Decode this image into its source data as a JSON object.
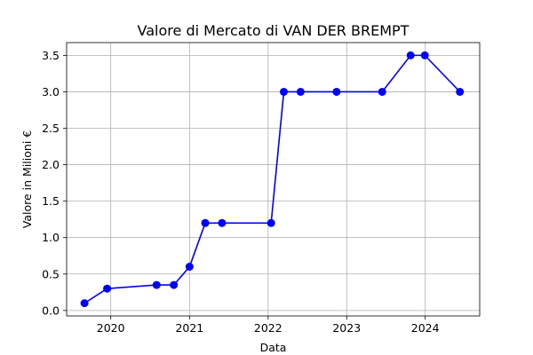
{
  "chart_data": {
    "type": "line",
    "title": "Valore di Mercato di VAN DER BREMPT",
    "xlabel": "Data",
    "ylabel": "Valore in Milioni €",
    "x_ticks": [
      "2020",
      "2021",
      "2022",
      "2023",
      "2024"
    ],
    "y_ticks": [
      "0.0",
      "0.5",
      "1.0",
      "1.5",
      "2.0",
      "2.5",
      "3.0",
      "3.5"
    ],
    "xlim": [
      "2019-06-10",
      "2024-09-10"
    ],
    "ylim": [
      -0.075,
      3.675
    ],
    "grid": true,
    "series": [
      {
        "color": "#0000ff",
        "marker": "circle",
        "x": [
          "2019-09-01",
          "2019-12-15",
          "2020-08-01",
          "2020-10-20",
          "2021-01-01",
          "2021-03-15",
          "2021-06-01",
          "2022-01-15",
          "2022-03-15",
          "2022-06-01",
          "2022-11-15",
          "2023-06-15",
          "2023-10-25",
          "2023-12-30",
          "2024-06-10"
        ],
        "values": [
          0.1,
          0.3,
          0.35,
          0.35,
          0.6,
          1.2,
          1.2,
          1.2,
          3.0,
          3.0,
          3.0,
          3.0,
          3.5,
          3.5,
          3.0
        ]
      }
    ]
  }
}
